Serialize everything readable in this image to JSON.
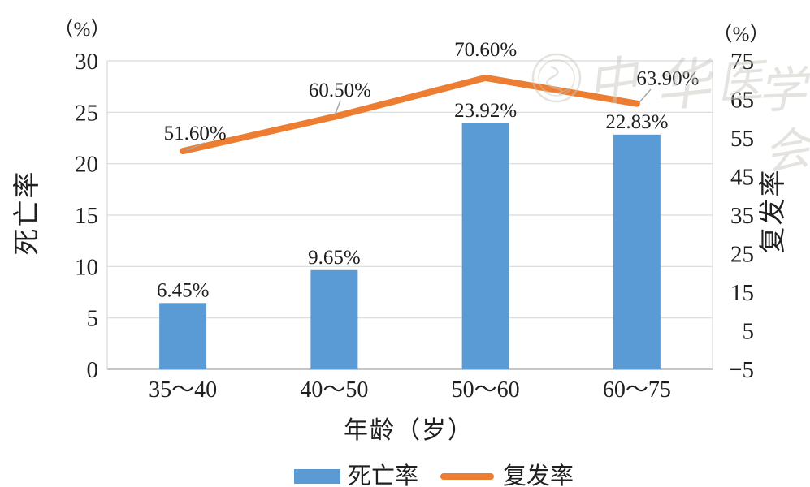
{
  "chart_data": {
    "type": "combo-bar-line",
    "categories": [
      "35～40",
      "40～50",
      "50～60",
      "60～75"
    ],
    "series": [
      {
        "name": "死亡率",
        "type": "bar",
        "axis": "left",
        "color": "#5B9BD5",
        "values": [
          6.45,
          9.65,
          23.92,
          22.83
        ],
        "data_labels": [
          "6.45%",
          "9.65%",
          "23.92%",
          "22.83%"
        ]
      },
      {
        "name": "复发率",
        "type": "line",
        "axis": "right",
        "color": "#ED7D31",
        "values": [
          51.6,
          60.5,
          70.6,
          63.9
        ],
        "data_labels": [
          "51.60%",
          "60.50%",
          "70.60%",
          "63.90%"
        ]
      }
    ],
    "left_axis": {
      "unit": "（%）",
      "title": "死亡率",
      "min": 0,
      "max": 30,
      "step": 5,
      "ticks": [
        0,
        5,
        10,
        15,
        20,
        25,
        30
      ],
      "tick_labels": [
        "0",
        "5",
        "10",
        "15",
        "20",
        "25",
        "30"
      ]
    },
    "right_axis": {
      "unit": "（%）",
      "title": "复发率",
      "min": -5,
      "max": 75,
      "step": 10,
      "ticks": [
        -5,
        5,
        15,
        25,
        35,
        45,
        55,
        65,
        75
      ],
      "tick_labels": [
        "−5",
        "5",
        "15",
        "25",
        "35",
        "45",
        "55",
        "65",
        "75"
      ]
    },
    "xlabel": "年龄（岁）",
    "grid": true,
    "legend_position": "bottom"
  },
  "legend": {
    "items": [
      {
        "label": "死亡率",
        "swatch": "bar",
        "color": "#5B9BD5"
      },
      {
        "label": "复发率",
        "swatch": "line",
        "color": "#ED7D31"
      }
    ]
  },
  "watermark": {
    "text": "中华医学会",
    "logo": "cma-seal-icon"
  },
  "colors": {
    "bar": "#5B9BD5",
    "line": "#ED7D31",
    "grid": "#d9d9d9",
    "axis": "#bfbfbf",
    "text": "#1f1f1f",
    "leader": "#a6a6a6",
    "watermark": "#ccc8c0"
  }
}
